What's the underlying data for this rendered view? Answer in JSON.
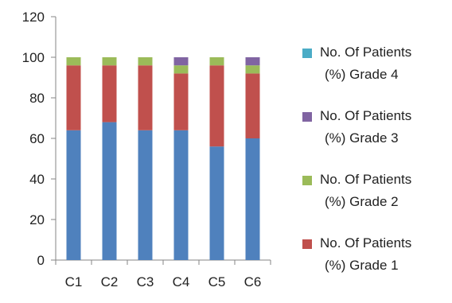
{
  "chart_data": {
    "type": "bar",
    "stacked": true,
    "categories": [
      "C1",
      "C2",
      "C3",
      "C4",
      "C5",
      "C6"
    ],
    "series": [
      {
        "name": "No. Of Patients (%) Grade 1",
        "legend_lines": [
          "No. Of Patients",
          "(%) Grade 1"
        ],
        "color": "#c0504d",
        "values": [
          32,
          28,
          32,
          28,
          40,
          32
        ]
      },
      {
        "name": "No. Of Patients (%) Grade 2",
        "legend_lines": [
          "No. Of Patients",
          "(%) Grade 2"
        ],
        "color": "#9bbb59",
        "values": [
          4,
          4,
          4,
          4,
          4,
          4
        ]
      },
      {
        "name": "No. Of Patients (%) Grade 3",
        "legend_lines": [
          "No. Of Patients",
          "(%) Grade 3"
        ],
        "color": "#8064a2",
        "values": [
          0,
          0,
          0,
          4,
          0,
          4
        ]
      },
      {
        "name": "No. Of Patients (%) Grade 4",
        "legend_lines": [
          "No. Of Patients",
          "(%) Grade 4"
        ],
        "color": "#4bacc6",
        "values": [
          0,
          0,
          0,
          0,
          0,
          0
        ]
      }
    ],
    "base_segment": {
      "color": "#4f81bd",
      "values": [
        64,
        68,
        64,
        64,
        56,
        60
      ]
    },
    "ylim": [
      0,
      120
    ],
    "yticks": [
      0,
      20,
      40,
      60,
      80,
      100,
      120
    ],
    "grid": false,
    "legend_position": "right",
    "legend_order": [
      3,
      2,
      1,
      0
    ]
  }
}
